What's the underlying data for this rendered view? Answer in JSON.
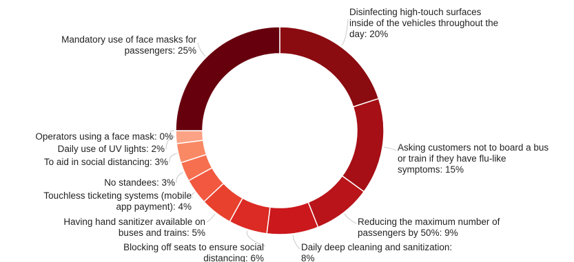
{
  "chart_data": {
    "type": "pie",
    "title": "",
    "donut": true,
    "slices": [
      {
        "label_lines": [
          "Disinfecting high-touch surfaces",
          "inside of the vehicles throughout the",
          "day: 20%"
        ],
        "value": 20,
        "color": "#8a0b10"
      },
      {
        "label_lines": [
          "Asking customers not to board a bus",
          "or train if they have flu-like",
          "symptoms: 15%"
        ],
        "value": 15,
        "color": "#a50f15"
      },
      {
        "label_lines": [
          "Reducing the maximum number of",
          "passengers by 50%: 9%"
        ],
        "value": 9,
        "color": "#b81419"
      },
      {
        "label_lines": [
          "Daily deep cleaning and sanitization:",
          "8%"
        ],
        "value": 8,
        "color": "#cb181d"
      },
      {
        "label_lines": [
          "Blocking off seats to ensure social",
          "distancing: 6%"
        ],
        "value": 6,
        "color": "#dc2a24"
      },
      {
        "label_lines": [
          "Having hand sanitizer available on",
          "buses and trains: 5%"
        ],
        "value": 5,
        "color": "#e8412e"
      },
      {
        "label_lines": [
          "Touchless ticketing systems (mobile",
          "app payment): 4%"
        ],
        "value": 4,
        "color": "#f2583f"
      },
      {
        "label_lines": [
          "No standees: 3%"
        ],
        "value": 3,
        "color": "#f6704f"
      },
      {
        "label_lines": [
          "To aid in social distancing: 3%"
        ],
        "value": 3,
        "color": "#f98965"
      },
      {
        "label_lines": [
          "Daily use of UV lights: 2%"
        ],
        "value": 2,
        "color": "#fca285"
      },
      {
        "label_lines": [
          "Operators using a face mask: 0%"
        ],
        "value": 0,
        "color": "#fcbba1"
      },
      {
        "label_lines": [
          "Mandatory use of face masks for",
          "passengers: 25%"
        ],
        "value": 25,
        "color": "#67000d"
      }
    ]
  }
}
